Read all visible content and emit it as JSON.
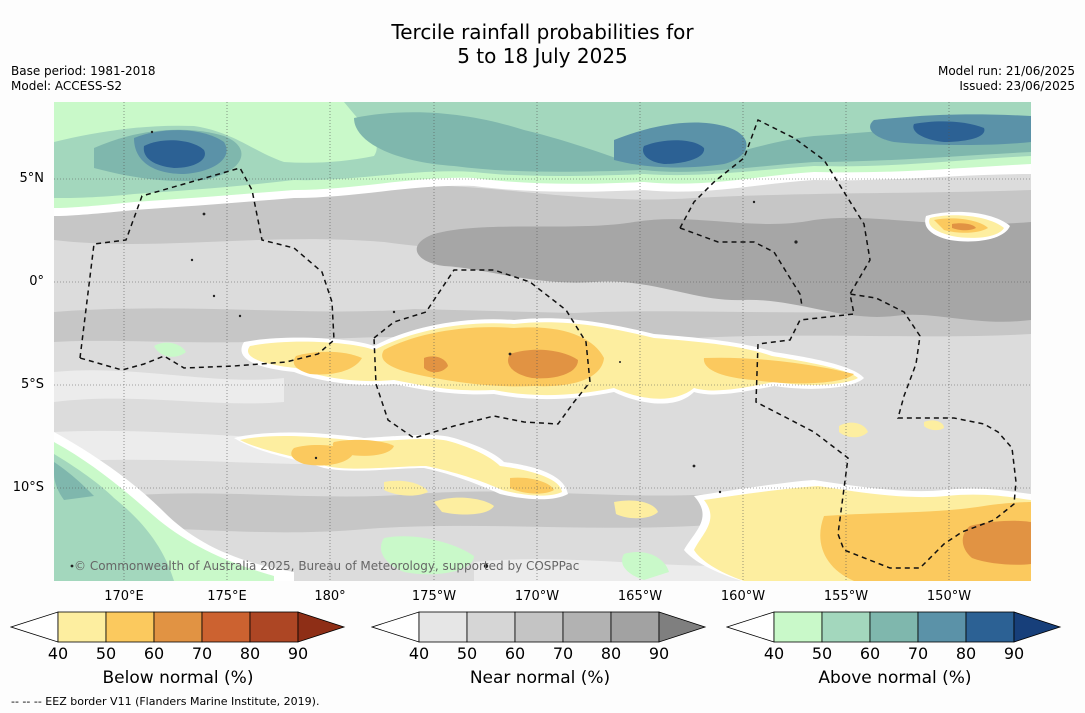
{
  "title": {
    "line1": "Tercile rainfall probabilities for",
    "line2": "5 to 18 July 2025"
  },
  "meta_left": {
    "base_period": "Base period: 1981-2018",
    "model": "Model: ACCESS-S2"
  },
  "meta_right": {
    "model_run": "Model run: 21/06/2025",
    "issued": "Issued: 23/06/2025"
  },
  "copyright": "© Commonwealth of Australia 2025, Bureau of Meteorology, supported by COSPPac",
  "lat_labels": [
    "5°N",
    "0°",
    "5°S",
    "10°S"
  ],
  "lon_labels": [
    "170°E",
    "175°E",
    "180°",
    "175°W",
    "170°W",
    "165°W",
    "160°W",
    "155°W",
    "150°W"
  ],
  "colorbars": [
    {
      "title": "Below normal (%)",
      "ticks": [
        "40",
        "50",
        "60",
        "70",
        "80",
        "90"
      ],
      "colors": [
        "#ffffff",
        "#fdeea0",
        "#fbc95e",
        "#e19343",
        "#cc6230",
        "#ad4624",
        "#8e2e16"
      ]
    },
    {
      "title": "Near normal (%)",
      "ticks": [
        "40",
        "50",
        "60",
        "70",
        "80",
        "90"
      ],
      "colors": [
        "#ffffff",
        "#e6e6e6",
        "#d6d6d6",
        "#c4c4c4",
        "#b2b2b2",
        "#a2a2a2",
        "#7f7f7f"
      ]
    },
    {
      "title": "Above normal (%)",
      "ticks": [
        "40",
        "50",
        "60",
        "70",
        "80",
        "90"
      ],
      "colors": [
        "#ffffff",
        "#c9f9c9",
        "#a3d7bd",
        "#7fb7ad",
        "#5b92a8",
        "#2c6194",
        "#173f7a"
      ]
    }
  ],
  "footnote": "--  --  -- EEZ border V11 (Flanders Marine Institute, 2019)."
}
